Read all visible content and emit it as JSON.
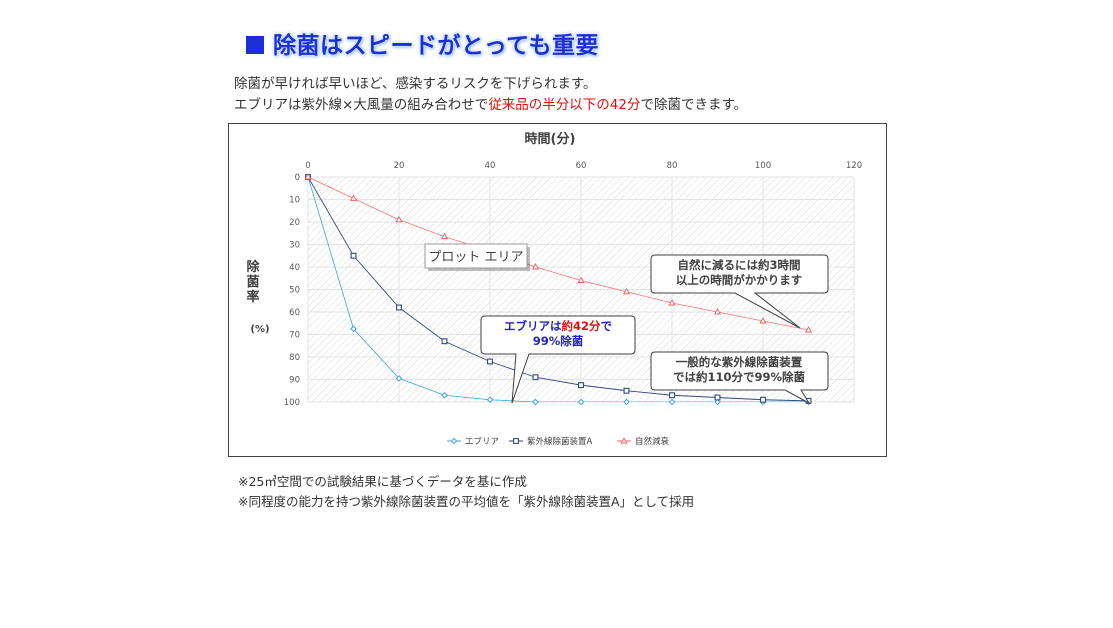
{
  "header": {
    "title_marker": "■",
    "title": "除菌はスピードがとっても重要"
  },
  "intro": {
    "line1": "除菌が早ければ早いほど、感染するリスクを下げられます。",
    "line2_prefix": "エブリアは紫外線×大風量の組み合わせで",
    "line2_highlight": "従来品の半分以下の42分",
    "line2_suffix": "で除菌できます。"
  },
  "colors": {
    "title": "#1a2fd6",
    "highlight": "#e01010",
    "series_everia": "#3da5d9",
    "series_uv": "#2f4b7c",
    "series_natural": "#f06060"
  },
  "chart_data": {
    "type": "line",
    "title": "時間(分)",
    "xlabel": "時間(分)",
    "ylabel": "除菌率",
    "ylabel_unit": "(%)",
    "xlim": [
      0,
      120
    ],
    "ylim": [
      0,
      100
    ],
    "y_reversed": true,
    "x_axis_position": "top",
    "x_ticks": [
      "0",
      "20",
      "40",
      "60",
      "80",
      "100",
      "120"
    ],
    "y_ticks": [
      "0",
      "10",
      "20",
      "30",
      "40",
      "50",
      "60",
      "70",
      "80",
      "90",
      "100"
    ],
    "grid": true,
    "legend_position": "bottom",
    "plot_area_label": "プロット エリア",
    "series": [
      {
        "name": "エブリア",
        "marker": "diamond",
        "x": [
          0,
          10,
          20,
          30,
          40,
          50,
          60,
          70,
          80,
          90,
          100,
          110
        ],
        "y": [
          0,
          67.5,
          89.5,
          97,
          99,
          100,
          100,
          100,
          100,
          100,
          100,
          100
        ]
      },
      {
        "name": "紫外線除菌装置A",
        "marker": "square",
        "x": [
          0,
          10,
          20,
          30,
          40,
          50,
          60,
          70,
          80,
          90,
          100,
          110
        ],
        "y": [
          0,
          35,
          58,
          73,
          82,
          89,
          92.5,
          95,
          97,
          98,
          99,
          99.5
        ]
      },
      {
        "name": "自然減衰",
        "marker": "triangle",
        "x": [
          0,
          10,
          20,
          30,
          40,
          50,
          60,
          70,
          80,
          90,
          100,
          110
        ],
        "y": [
          0,
          9.5,
          19,
          26.5,
          33,
          40,
          46,
          51,
          56,
          60,
          64,
          68
        ]
      }
    ],
    "annotations": {
      "everia_1": "エブリアは",
      "everia_2": "約42分",
      "everia_3": "で",
      "everia_4": "99%除菌",
      "natural_1": "自然に減るには約3時間",
      "natural_2": "以上の時間がかかります",
      "uv_1": "一般的な紫外線除菌装置",
      "uv_2": "では約110分で99%除菌"
    }
  },
  "footnotes": [
    "※25㎥空間での試験結果に基づくデータを基に作成",
    "※同程度の能力を持つ紫外線除菌装置の平均値を「紫外線除菌装置A」として採用"
  ]
}
